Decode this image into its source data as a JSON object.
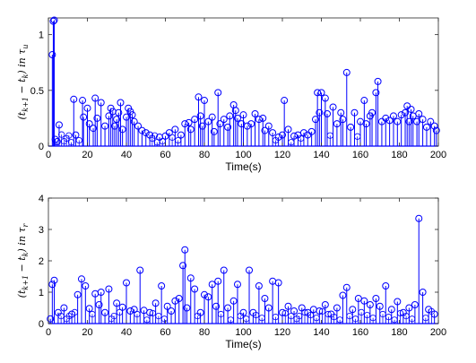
{
  "chart_data": [
    {
      "type": "stem",
      "ylabel": "(t_{k+1} − t_k) in τ_u",
      "xlabel": "Time(s)",
      "xlim": [
        0,
        200
      ],
      "ylim": [
        0,
        1.15
      ],
      "xticks": [
        0,
        20,
        40,
        60,
        80,
        100,
        120,
        140,
        160,
        180,
        200
      ],
      "yticks": [
        0,
        0.5,
        1
      ],
      "ytick_labels": [
        "0",
        "0.5",
        "1"
      ],
      "grid": false,
      "color": "#0000ff",
      "series": [
        {
          "x": [
            2,
            2.5,
            3,
            3.5,
            4.5,
            5.5,
            13,
            14,
            17.5,
            18,
            20,
            21,
            23,
            24,
            25,
            27,
            29,
            31,
            32,
            33,
            34,
            35,
            36,
            37,
            38,
            40,
            41,
            42,
            43,
            44,
            46,
            48,
            50,
            52,
            57,
            60,
            62,
            65,
            68,
            70,
            72,
            73,
            75,
            77,
            78,
            79,
            80,
            82,
            84,
            85,
            87,
            88,
            90,
            92,
            93,
            95,
            96,
            97,
            99,
            100,
            102,
            104,
            106,
            108,
            110,
            111,
            113,
            115,
            118,
            120,
            121,
            123,
            126,
            128,
            131,
            133,
            135,
            137,
            138,
            139,
            140,
            142,
            143,
            146,
            148,
            150,
            151,
            153,
            155,
            157,
            160,
            162,
            163,
            165,
            166,
            168,
            169,
            171,
            173,
            175,
            177,
            179,
            181,
            183,
            184,
            185,
            186,
            187,
            189,
            190,
            192,
            194,
            196,
            198,
            199
          ],
          "y": [
            0.82,
            1.12,
            1.13,
            0.06,
            0.04,
            0.19,
            0.42,
            0.1,
            0.41,
            0.26,
            0.34,
            0.2,
            0.16,
            0.43,
            0.25,
            0.39,
            0.18,
            0.27,
            0.34,
            0.31,
            0.18,
            0.24,
            0.3,
            0.39,
            0.15,
            0.26,
            0.34,
            0.31,
            0.28,
            0.22,
            0.18,
            0.14,
            0.12,
            0.1,
            0.08,
            0.09,
            0.12,
            0.15,
            0.1,
            0.2,
            0.21,
            0.15,
            0.24,
            0.44,
            0.27,
            0.18,
            0.41,
            0.22,
            0.26,
            0.13,
            0.48,
            0.2,
            0.24,
            0.17,
            0.27,
            0.37,
            0.32,
            0.25,
            0.2,
            0.28,
            0.18,
            0.2,
            0.29,
            0.24,
            0.25,
            0.14,
            0.18,
            0.12,
            0.08,
            0.1,
            0.41,
            0.15,
            0.09,
            0.1,
            0.12,
            0.1,
            0.13,
            0.24,
            0.48,
            0.3,
            0.48,
            0.43,
            0.29,
            0.35,
            0.2,
            0.3,
            0.24,
            0.66,
            0.17,
            0.3,
            0.22,
            0.41,
            0.2,
            0.27,
            0.3,
            0.48,
            0.58,
            0.22,
            0.25,
            0.23,
            0.27,
            0.22,
            0.28,
            0.3,
            0.36,
            0.22,
            0.33,
            0.27,
            0.22,
            0.29,
            0.24,
            0.17,
            0.22,
            0.18,
            0.14
          ]
        }
      ]
    },
    {
      "type": "stem",
      "ylabel": "(t_{k+1} − t_k) in τ_r",
      "xlabel": "Time(s)",
      "xlim": [
        0,
        200
      ],
      "ylim": [
        0,
        4
      ],
      "xticks": [
        0,
        20,
        40,
        60,
        80,
        100,
        120,
        140,
        160,
        180,
        200
      ],
      "yticks": [
        0,
        1,
        2,
        3,
        4
      ],
      "ytick_labels": [
        "0",
        "1",
        "2",
        "3",
        "4"
      ],
      "grid": false,
      "color": "#0000ff",
      "series": [
        {
          "x": [
            1,
            2,
            3,
            5,
            8,
            12,
            15,
            17,
            19,
            21,
            24,
            26,
            27,
            29,
            31,
            35,
            38,
            40,
            42,
            44,
            47,
            49,
            52,
            55,
            58,
            61,
            63,
            65,
            67,
            69,
            70,
            71,
            73,
            75,
            78,
            80,
            82,
            84,
            86,
            87,
            90,
            92,
            95,
            97,
            100,
            103,
            105,
            108,
            111,
            113,
            115,
            118,
            120,
            123,
            126,
            130,
            133,
            136,
            139,
            142,
            145,
            148,
            151,
            153,
            156,
            159,
            162,
            165,
            168,
            170,
            173,
            176,
            179,
            182,
            185,
            188,
            190,
            192,
            195,
            198
          ],
          "y": [
            0.15,
            1.25,
            1.38,
            0.35,
            0.5,
            0.3,
            0.92,
            1.42,
            1.2,
            0.48,
            0.95,
            0.6,
            1.0,
            0.35,
            1.1,
            0.65,
            0.52,
            1.3,
            0.4,
            0.45,
            1.7,
            0.42,
            0.35,
            0.65,
            1.2,
            0.55,
            0.4,
            0.72,
            0.8,
            1.85,
            2.35,
            0.5,
            1.45,
            1.1,
            0.35,
            0.92,
            0.85,
            1.25,
            0.55,
            1.35,
            1.7,
            0.5,
            0.72,
            1.25,
            0.35,
            1.7,
            0.35,
            1.2,
            0.8,
            0.5,
            1.35,
            1.3,
            0.35,
            0.55,
            0.4,
            0.5,
            0.35,
            0.45,
            0.4,
            0.6,
            0.3,
            0.5,
            0.9,
            1.15,
            0.45,
            0.8,
            0.72,
            0.6,
            0.8,
            0.55,
            1.2,
            0.45,
            0.7,
            0.35,
            0.5,
            0.6,
            3.35,
            1.0,
            0.45,
            0.3
          ]
        }
      ]
    }
  ]
}
